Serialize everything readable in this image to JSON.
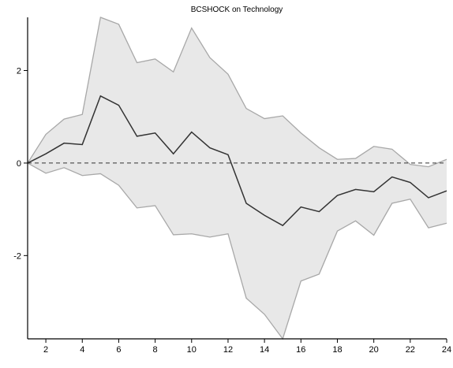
{
  "chart_data": {
    "type": "line",
    "title": "BCSHOCK on Technology",
    "xlabel": "",
    "ylabel": "",
    "x": [
      1,
      2,
      3,
      4,
      5,
      6,
      7,
      8,
      9,
      10,
      11,
      12,
      13,
      14,
      15,
      16,
      17,
      18,
      19,
      20,
      21,
      22,
      23,
      24
    ],
    "xlim": [
      1,
      24
    ],
    "ylim": [
      -3.8,
      3.15
    ],
    "xticks": [
      2,
      4,
      6,
      8,
      10,
      12,
      14,
      16,
      18,
      20,
      22,
      24
    ],
    "yticks": [
      2,
      0,
      -2
    ],
    "ytick_labels": [
      "2",
      "0",
      "-2"
    ],
    "grid": false,
    "legend": "none",
    "zero_line": {
      "value": 0,
      "style": "dashed"
    },
    "series": [
      {
        "role": "point_estimate",
        "values": [
          0.0,
          0.2,
          0.43,
          0.4,
          1.45,
          1.25,
          0.58,
          0.65,
          0.2,
          0.67,
          0.33,
          0.18,
          -0.87,
          -1.13,
          -1.35,
          -0.95,
          -1.05,
          -0.7,
          -0.57,
          -0.62,
          -0.3,
          -0.42,
          -0.75,
          -0.6
        ]
      },
      {
        "role": "upper_band",
        "values": [
          0.0,
          0.62,
          0.95,
          1.05,
          3.15,
          3.0,
          2.17,
          2.25,
          1.97,
          2.92,
          2.28,
          1.92,
          1.18,
          0.96,
          1.02,
          0.65,
          0.33,
          0.08,
          0.1,
          0.36,
          0.3,
          -0.03,
          -0.08,
          0.08
        ]
      },
      {
        "role": "lower_band",
        "values": [
          0.0,
          -0.22,
          -0.1,
          -0.27,
          -0.23,
          -0.48,
          -0.97,
          -0.92,
          -1.55,
          -1.53,
          -1.6,
          -1.53,
          -2.92,
          -3.27,
          -3.8,
          -2.55,
          -2.4,
          -1.47,
          -1.25,
          -1.56,
          -0.87,
          -0.78,
          -1.4,
          -1.3
        ]
      }
    ],
    "colors": {
      "line": "#333333",
      "band_fill": "#e8e8e8",
      "band_edge": "#a8a8a8",
      "axis": "#000000",
      "zero_line": "#333333"
    }
  }
}
